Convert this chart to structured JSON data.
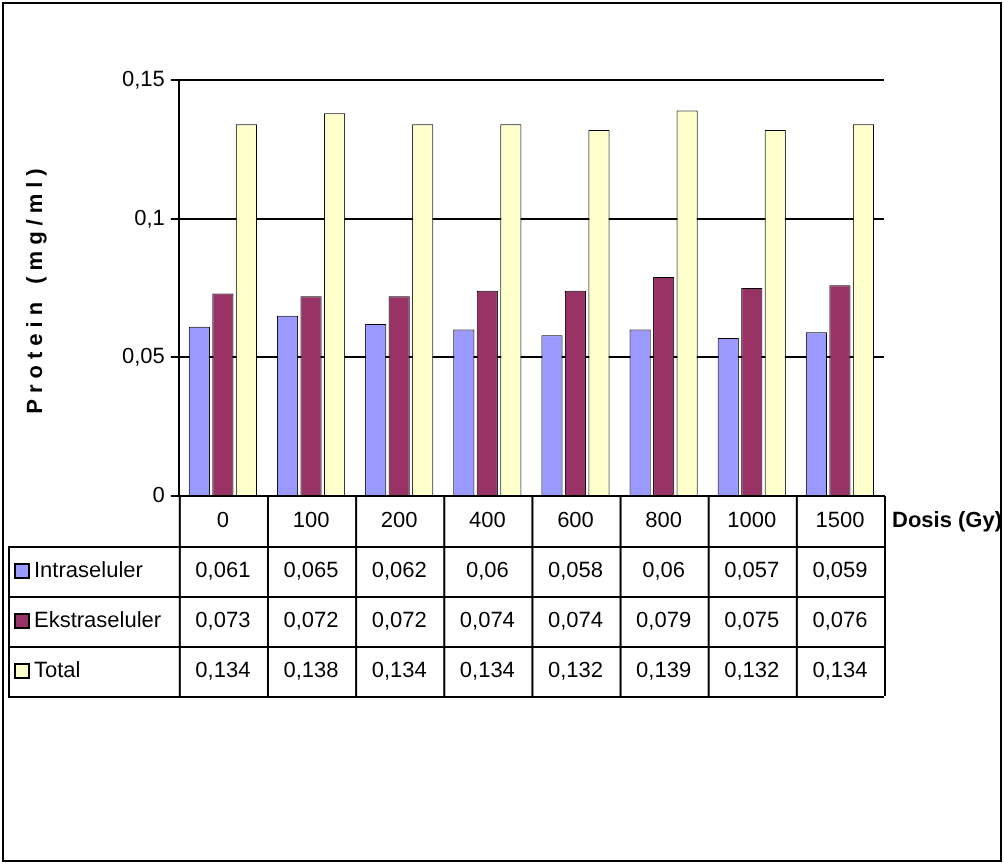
{
  "chart_data": {
    "type": "bar",
    "ylabel": "Protein (mg/ml)",
    "xlabel": "Dosis (Gy)",
    "categories": [
      "0",
      "100",
      "200",
      "400",
      "600",
      "800",
      "1000",
      "1500"
    ],
    "series": [
      {
        "name": "Intraseluler",
        "color": "#9999ff",
        "values": [
          0.061,
          0.065,
          0.062,
          0.06,
          0.058,
          0.06,
          0.057,
          0.059
        ],
        "value_labels": [
          "0,061",
          "0,065",
          "0,062",
          "0,06",
          "0,058",
          "0,06",
          "0,057",
          "0,059"
        ]
      },
      {
        "name": "Ekstraseluler",
        "color": "#993366",
        "values": [
          0.073,
          0.072,
          0.072,
          0.074,
          0.074,
          0.079,
          0.075,
          0.076
        ],
        "value_labels": [
          "0,073",
          "0,072",
          "0,072",
          "0,074",
          "0,074",
          "0,079",
          "0,075",
          "0,076"
        ]
      },
      {
        "name": "Total",
        "color": "#ffffcc",
        "values": [
          0.134,
          0.138,
          0.134,
          0.134,
          0.132,
          0.139,
          0.132,
          0.134
        ],
        "value_labels": [
          "0,134",
          "0,138",
          "0,134",
          "0,134",
          "0,132",
          "0,139",
          "0,132",
          "0,134"
        ]
      }
    ],
    "ylim": [
      0,
      0.15
    ],
    "yticks": [
      {
        "value": 0,
        "label": "0"
      },
      {
        "value": 0.05,
        "label": "0,05"
      },
      {
        "value": 0.1,
        "label": "0,1"
      },
      {
        "value": 0.15,
        "label": "0,15"
      }
    ],
    "grid": "y",
    "legend": "bottom"
  }
}
